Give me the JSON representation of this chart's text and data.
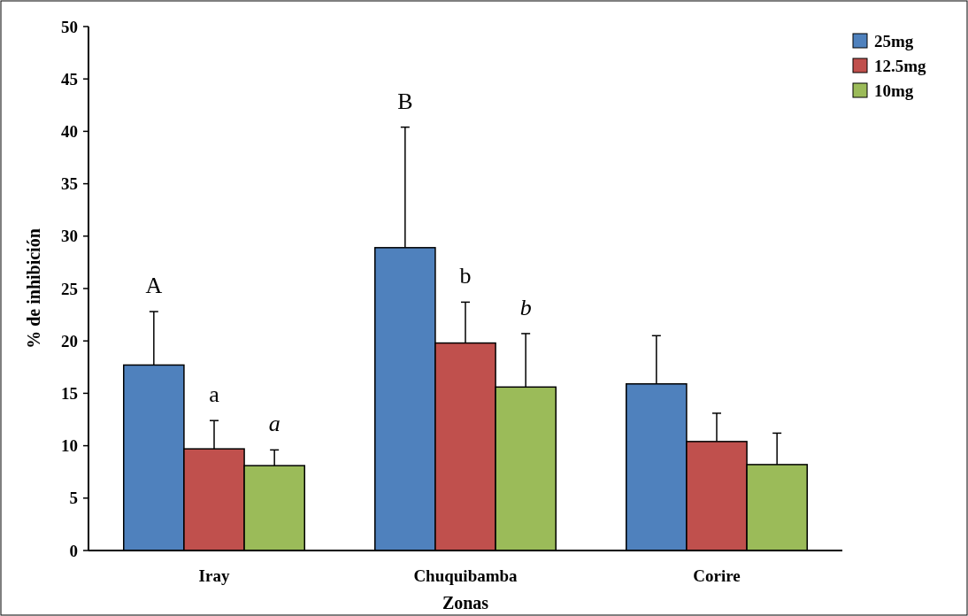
{
  "chart_data": {
    "type": "bar",
    "xlabel": "Zonas",
    "ylabel": "% de inhibición",
    "categories": [
      "Iray",
      "Chuquibamba",
      "Corire"
    ],
    "series": [
      {
        "name": "25mg",
        "color": "#4f81bd",
        "values": [
          17.7,
          28.9,
          15.9
        ],
        "errors": [
          5.1,
          11.5,
          4.6
        ]
      },
      {
        "name": "12.5mg",
        "color": "#c0504d",
        "values": [
          9.7,
          19.8,
          10.4
        ],
        "errors": [
          2.7,
          3.9,
          2.7
        ]
      },
      {
        "name": "10mg",
        "color": "#9bbb59",
        "values": [
          8.1,
          15.6,
          8.2
        ],
        "errors": [
          1.5,
          5.1,
          3.0
        ]
      }
    ],
    "ylim": [
      0,
      50
    ],
    "yticks": [
      0,
      5,
      10,
      15,
      20,
      25,
      30,
      35,
      40,
      45,
      50
    ],
    "grid": false,
    "legend": "top right",
    "annotations": [
      "A",
      "a",
      "a",
      "B",
      "b",
      "b"
    ]
  }
}
